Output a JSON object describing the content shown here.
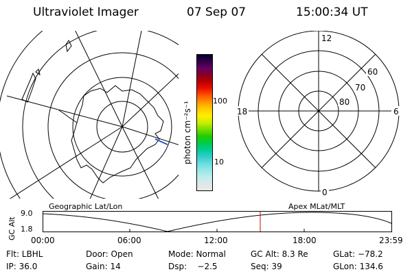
{
  "header": {
    "title": "Ultraviolet Imager",
    "date": "07 Sep 07",
    "time": "15:00:34 UT"
  },
  "colorbar": {
    "unit": "photon cm⁻²s⁻¹",
    "ticks": [
      "100",
      "10"
    ]
  },
  "polar_plot": {
    "mlt_labels": {
      "top": "12",
      "left": "18",
      "right": "6",
      "bottom": "0"
    },
    "lat_labels": [
      "60",
      "70",
      "80"
    ]
  },
  "timeline": {
    "left_label": "Geographic Lat/Lon",
    "right_label": "Apex MLat/MLT",
    "axis_title": "GC Alt",
    "y_ticks": [
      "9.0",
      "1.8"
    ],
    "x_ticks": [
      "00:00",
      "06:00",
      "12:00",
      "18:00",
      "23:59"
    ],
    "marker_color": "#cc0000"
  },
  "footer": {
    "row1": [
      "Flt: LBHL",
      "Door: Open",
      "Mode: Normal",
      "GC Alt: 8.3 Re",
      "GLat: −78.2"
    ],
    "row2": [
      "IP: 36.0",
      "Gain: 14",
      "Dsp:    −2.5",
      "Seq: 39",
      "GLon: 134.6"
    ]
  },
  "colors": {
    "colorbar": [
      "#000033",
      "#330044",
      "#660066",
      "#880022",
      "#bb0000",
      "#ee1100",
      "#ff5500",
      "#ff9900",
      "#ffcc00",
      "#ffee00",
      "#ccee00",
      "#77dd00",
      "#22cc00",
      "#00cc44",
      "#00cc99",
      "#33cccc",
      "#66dddd",
      "#99e6e6",
      "#bbeeee",
      "#dde8e8",
      "#e8e8e8"
    ]
  }
}
